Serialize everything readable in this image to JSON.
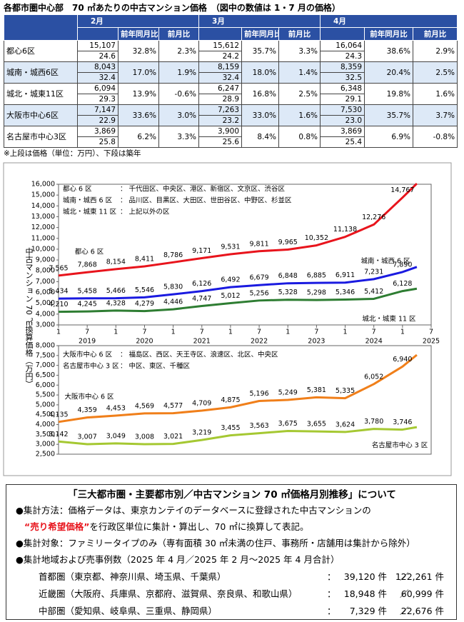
{
  "header": {
    "title": "各都市圏中心部　70 ㎡あたりの中古マンション価格　（図中の数値は 1・7 月の価格）"
  },
  "table": {
    "months": [
      "2月",
      "3月",
      "4月"
    ],
    "col_headers": [
      "前年同月比",
      "前月比"
    ],
    "rows": [
      {
        "name": "都心6区",
        "cells": [
          [
            "15,107",
            "24.6",
            "32.8%",
            "2.3%"
          ],
          [
            "15,612",
            "24.2",
            "35.7%",
            "3.3%"
          ],
          [
            "16,064",
            "24.3",
            "38.6%",
            "2.9%"
          ]
        ]
      },
      {
        "name": "城南・城西6区",
        "cells": [
          [
            "8,043",
            "32.4",
            "17.0%",
            "1.9%"
          ],
          [
            "8,159",
            "32.4",
            "18.0%",
            "1.4%"
          ],
          [
            "8,359",
            "32.5",
            "20.4%",
            "2.5%"
          ]
        ]
      },
      {
        "name": "城北・城東11区",
        "cells": [
          [
            "6,094",
            "29.3",
            "13.9%",
            "-0.6%"
          ],
          [
            "6,247",
            "28.9",
            "16.8%",
            "2.5%"
          ],
          [
            "6,348",
            "29.1",
            "19.8%",
            "1.6%"
          ]
        ]
      },
      {
        "name": "大阪市中心6区",
        "cells": [
          [
            "7,147",
            "22.9",
            "33.6%",
            "3.0%"
          ],
          [
            "7,263",
            "23.2",
            "33.0%",
            "1.6%"
          ],
          [
            "7,530",
            "23.0",
            "35.7%",
            "3.7%"
          ]
        ]
      },
      {
        "name": "名古屋市中心3区",
        "cells": [
          [
            "3,869",
            "25.8",
            "6.2%",
            "3.3%"
          ],
          [
            "3,900",
            "25.6",
            "8.4%",
            "0.8%"
          ],
          [
            "3,869",
            "25.4",
            "6.9%",
            "-0.8%"
          ]
        ]
      }
    ],
    "note": "※上段は価格（単位：万円）、下段は築年"
  },
  "y_axis_label": "中古マンション 70 ㎡換算価格（万円）",
  "chart_data": [
    {
      "type": "line",
      "x": [
        "2019-01",
        "2019-07",
        "2020-01",
        "2020-07",
        "2021-01",
        "2021-07",
        "2022-01",
        "2022-07",
        "2023-01",
        "2023-07",
        "2024-01",
        "2024-07",
        "2025-01",
        "2025-04"
      ],
      "xlim": [
        "2019-01",
        "2025-07"
      ],
      "xticks": [
        {
          "value": "2019-01",
          "label": "1"
        },
        {
          "value": "2019-07",
          "label": "7"
        },
        {
          "value": "2020-01",
          "label": "1"
        },
        {
          "value": "2020-07",
          "label": "7"
        },
        {
          "value": "2021-01",
          "label": "1"
        },
        {
          "value": "2021-07",
          "label": "7"
        },
        {
          "value": "2022-01",
          "label": "1"
        },
        {
          "value": "2022-07",
          "label": "7"
        },
        {
          "value": "2023-01",
          "label": "1"
        },
        {
          "value": "2023-07",
          "label": "7"
        },
        {
          "value": "2024-01",
          "label": "1"
        },
        {
          "value": "2024-07",
          "label": "7"
        },
        {
          "value": "2025-01",
          "label": "1"
        },
        {
          "value": "2025-07",
          "label": "7"
        }
      ],
      "xgroups": [
        {
          "value": "2019-07",
          "label": "2019"
        },
        {
          "value": "2020-07",
          "label": "2020"
        },
        {
          "value": "2021-07",
          "label": "2021"
        },
        {
          "value": "2022-07",
          "label": "2022"
        },
        {
          "value": "2023-07",
          "label": "2023"
        },
        {
          "value": "2024-07",
          "label": "2024"
        },
        {
          "value": "2025-07",
          "label": "2025"
        }
      ],
      "ylim": [
        3000,
        16000
      ],
      "yticks": [
        {
          "value": 3000,
          "label": "3,000"
        },
        {
          "value": 4000,
          "label": "4,000"
        },
        {
          "value": 5000,
          "label": "5,000"
        },
        {
          "value": 6000,
          "label": "6,000"
        },
        {
          "value": 7000,
          "label": "7,000"
        },
        {
          "value": 8000,
          "label": "8,000"
        },
        {
          "value": 9000,
          "label": "9,000"
        },
        {
          "value": 10000,
          "label": "10,000"
        },
        {
          "value": 11000,
          "label": "11,000"
        },
        {
          "value": 12000,
          "label": "12,000"
        },
        {
          "value": 13000,
          "label": "13,000"
        },
        {
          "value": 14000,
          "label": "14,000"
        },
        {
          "value": 15000,
          "label": "15,000"
        },
        {
          "value": 16000,
          "label": "16,000"
        }
      ],
      "series": [
        {
          "name": "都心 6 区",
          "description": "： 千代田区、中央区、港区、新宿区、文京区、渋谷区",
          "color": "#e8141c",
          "values": [
            7565,
            7868,
            8154,
            8411,
            8786,
            9171,
            9531,
            9811,
            9965,
            10352,
            11138,
            12276,
            14767,
            16064
          ],
          "value_labels": [
            "7,565",
            "7,868",
            "8,154",
            "8,411",
            "8,786",
            "9,171",
            "9,531",
            "9,811",
            "9,965",
            "10,352",
            "11,138",
            "12,276",
            "14,767",
            null
          ]
        },
        {
          "name": "城南・城西 6 区",
          "description": "： 品川区、目黒区、大田区、世田谷区、中野区、杉並区",
          "color": "#1a1ae0",
          "values": [
            5434,
            5458,
            5466,
            5546,
            5830,
            6126,
            6492,
            6679,
            6848,
            6885,
            6911,
            7231,
            7890,
            8359
          ],
          "value_labels": [
            "5,434",
            "5,458",
            "5,466",
            "5,546",
            "5,830",
            "6,126",
            "6,492",
            "6,679",
            "6,848",
            "6,885",
            "6,911",
            "7,231",
            "7,890",
            null
          ]
        },
        {
          "name": "城北・城東 11 区",
          "description": "： 上記以外の区",
          "color": "#2e7d32",
          "values": [
            4210,
            4245,
            4328,
            4279,
            4446,
            4747,
            5012,
            5256,
            5328,
            5298,
            5346,
            5412,
            6128,
            6348
          ],
          "value_labels": [
            "4,210",
            "4,245",
            "4,328",
            "4,279",
            "4,446",
            "4,747",
            "5,012",
            "5,256",
            "5,328",
            "5,298",
            "5,346",
            "5,412",
            "6,128",
            null
          ]
        }
      ]
    },
    {
      "type": "line",
      "x": [
        "2019-01",
        "2019-07",
        "2020-01",
        "2020-07",
        "2021-01",
        "2021-07",
        "2022-01",
        "2022-07",
        "2023-01",
        "2023-07",
        "2024-01",
        "2024-07",
        "2025-01",
        "2025-04"
      ],
      "xlim": [
        "2019-01",
        "2025-07"
      ],
      "ylim": [
        2500,
        8000
      ],
      "yticks": [
        {
          "value": 2500,
          "label": "2,500"
        },
        {
          "value": 3000,
          "label": "3,000"
        },
        {
          "value": 3500,
          "label": "3,500"
        },
        {
          "value": 4000,
          "label": "4,000"
        },
        {
          "value": 4500,
          "label": "4,500"
        },
        {
          "value": 5000,
          "label": "5,000"
        },
        {
          "value": 5500,
          "label": "5,500"
        },
        {
          "value": 6000,
          "label": "6,000"
        },
        {
          "value": 6500,
          "label": "6,500"
        },
        {
          "value": 7000,
          "label": "7,000"
        },
        {
          "value": 7500,
          "label": "7,500"
        },
        {
          "value": 8000,
          "label": "8,000"
        }
      ],
      "series": [
        {
          "name": "大阪市中心 6 区",
          "description": "： 福島区、西区、天王寺区、浪速区、北区、中央区",
          "color": "#f07f1a",
          "values": [
            4135,
            4359,
            4453,
            4569,
            4577,
            4709,
            4875,
            5196,
            5249,
            5381,
            5335,
            6052,
            6940,
            7530
          ],
          "value_labels": [
            "4,135",
            "4,359",
            "4,453",
            "4,569",
            "4,577",
            "4,709",
            "4,875",
            "5,196",
            "5,249",
            "5,381",
            "5,335",
            "6,052",
            "6,940",
            null
          ]
        },
        {
          "name": "名古屋市中心 3 区",
          "description": "： 中区、東区、千種区",
          "color": "#a5c832",
          "values": [
            3142,
            3007,
            3049,
            3008,
            3021,
            3219,
            3455,
            3563,
            3675,
            3655,
            3624,
            3780,
            3746,
            3869
          ],
          "value_labels": [
            "3,142",
            "3,007",
            "3,049",
            "3,008",
            "3,021",
            "3,219",
            "3,455",
            "3,563",
            "3,675",
            "3,655",
            "3,624",
            "3,780",
            "3,746",
            null
          ]
        }
      ]
    }
  ],
  "notes": {
    "title": "「三大都市圏・主要都市別／中古マンション 70 ㎡価格月別推移」について",
    "method": "●集計方法：価格データは、東京カンテイのデータベースに登録された中古マンションの",
    "method_key": "“売り希望価格”",
    "method_rest": "を行政区単位に集計・算出し、70 ㎡に換算して表記。",
    "target": "●集計対象：ファミリータイプのみ（専有面積 30 ㎡未満の住戸、事務所・店舗用は集計から除外）",
    "regions_title": "●集計地域および売事例数（2025 年 4 月／2025 年 2 月～2025 年 4 月合計）",
    "colon": "：",
    "slash": "／",
    "regions": [
      {
        "name": "首都圏（東京都、神奈川県、埼玉県、千葉県）",
        "month": "39,120 件",
        "total": "122,261 件"
      },
      {
        "name": "近畿圏（大阪府、兵庫県、京都府、滋賀県、奈良県、和歌山県）",
        "month": "18,948 件",
        "total": "60,999 件"
      },
      {
        "name": "中部圏（愛知県、岐阜県、三重県、静岡県）",
        "month": "7,329 件",
        "total": "22,676 件"
      }
    ]
  }
}
